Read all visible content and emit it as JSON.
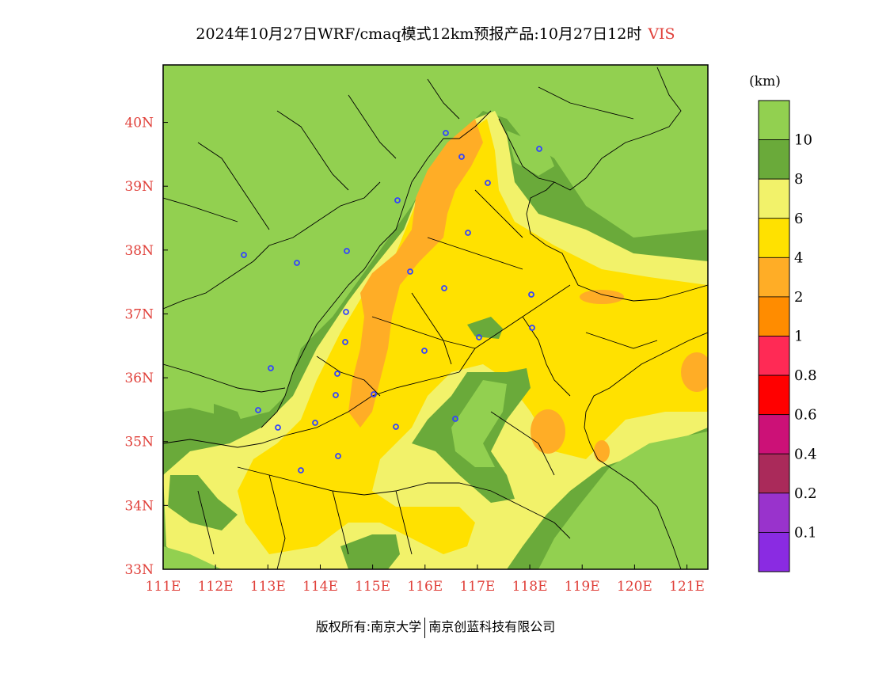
{
  "title": {
    "main": "2024年10月27日WRF/cmaq模式12km预报产品:10月27日12时",
    "variable": "VIS"
  },
  "map": {
    "lon_labels": [
      "111E",
      "112E",
      "113E",
      "114E",
      "115E",
      "116E",
      "117E",
      "118E",
      "119E",
      "120E",
      "121E"
    ],
    "lat_labels": [
      "33N",
      "34N",
      "35N",
      "36N",
      "37N",
      "38N",
      "39N",
      "40N"
    ],
    "lon_range": [
      111,
      121.4
    ],
    "lat_range": [
      33,
      40.9
    ],
    "label_color": "#e0403a"
  },
  "legend": {
    "unit": "(km)",
    "levels": [
      {
        "label": "10",
        "color": "#92d050"
      },
      {
        "label": "8",
        "color": "#6aaa3a"
      },
      {
        "label": "6",
        "color": "#f2f26a"
      },
      {
        "label": "4",
        "color": "#ffe100"
      },
      {
        "label": "2",
        "color": "#ffad26"
      },
      {
        "label": "1",
        "color": "#ff8c00"
      },
      {
        "label": "0.8",
        "color": "#ff2a55"
      },
      {
        "label": "0.6",
        "color": "#ff0000"
      },
      {
        "label": "0.4",
        "color": "#cc1177"
      },
      {
        "label": "0.2",
        "color": "#aa2a5a"
      },
      {
        "label": "0.1",
        "color": "#9933cc"
      },
      {
        "label": "",
        "color": "#8a2be2"
      }
    ],
    "top_color": "#92d050"
  },
  "footer": {
    "left": "版权所有:南京大学",
    "right": "南京创蓝科技有限公司"
  }
}
